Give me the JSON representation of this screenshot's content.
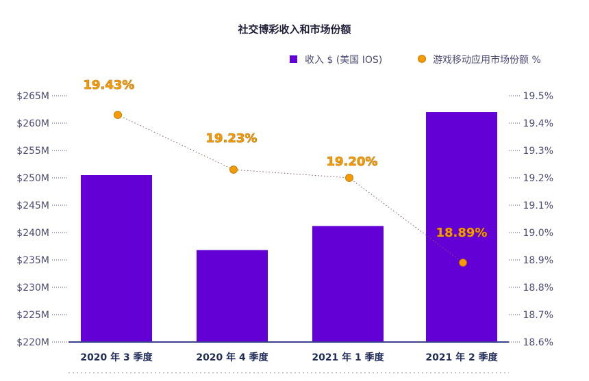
{
  "chart_data": {
    "type": "bar+line",
    "title": "社交博彩收入和市场份额",
    "categories": [
      "2020 年 3 季度",
      "2020 年 4 季度",
      "2021 年 1 季度",
      "2021 年 2 季度"
    ],
    "series": [
      {
        "name": "收入 $ (美国 IOS)",
        "type": "bar",
        "axis": "left",
        "color": "#6200d6",
        "values": [
          250.5,
          236.8,
          241.2,
          262.0
        ]
      },
      {
        "name": "游戏移动应用市场份额 %",
        "type": "line",
        "axis": "right",
        "color": "#f59a00",
        "values": [
          19.43,
          19.23,
          19.2,
          18.89
        ],
        "labels": [
          "19.43%",
          "19.23%",
          "19.20%",
          "18.89%"
        ]
      }
    ],
    "y_left": {
      "ticks": [
        "$220M",
        "$225M",
        "$230M",
        "$235M",
        "$240M",
        "$245M",
        "$250M",
        "$255M",
        "$260M",
        "$265M"
      ],
      "range": [
        220,
        265
      ]
    },
    "y_right": {
      "ticks": [
        "18.6%",
        "18.7%",
        "18.8%",
        "18.9%",
        "19.0%",
        "19.1%",
        "19.2%",
        "19.3%",
        "19.4%",
        "19.5%"
      ],
      "range": [
        18.6,
        19.5
      ]
    },
    "grid": false,
    "legend_position": "top-right"
  }
}
